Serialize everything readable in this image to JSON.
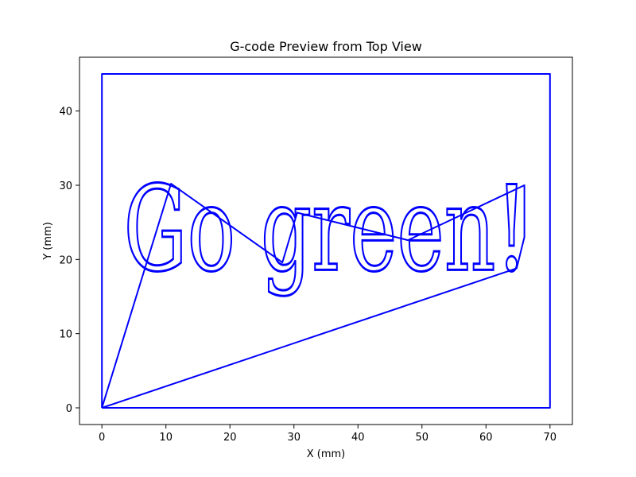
{
  "chart_data": {
    "type": "line",
    "title": "G-code Preview from Top View",
    "xlabel": "X (mm)",
    "ylabel": "Y (mm)",
    "xlim": [
      -3.5,
      73.5
    ],
    "ylim": [
      -2.25,
      47.25
    ],
    "xticks": [
      0,
      10,
      20,
      30,
      40,
      50,
      60,
      70
    ],
    "yticks": [
      0,
      10,
      20,
      30,
      40
    ],
    "grid": false,
    "line_color": "#0000ff",
    "series": [
      {
        "kind": "border",
        "x": [
          0,
          70,
          70,
          0,
          0
        ],
        "y": [
          0,
          0,
          45,
          45,
          0
        ]
      },
      {
        "kind": "travel",
        "x": [
          0,
          10.8,
          28.2,
          30.5,
          47.8,
          66.0,
          66.0,
          64.8,
          0
        ],
        "y": [
          0,
          30.2,
          19.6,
          26.3,
          22.6,
          30.0,
          23.0,
          18.8,
          0
        ]
      }
    ],
    "engraved_text": {
      "text": "Go green!",
      "x": 3.4,
      "y": 18.6,
      "height_mm": 12
    }
  }
}
